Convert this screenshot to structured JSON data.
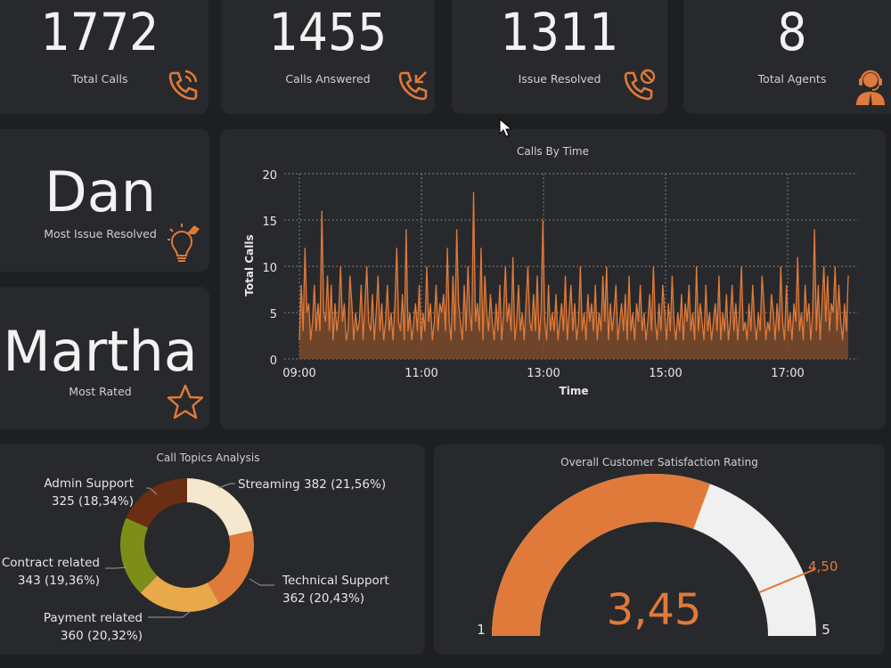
{
  "kpis": [
    {
      "value": "1772",
      "label": "Total Calls",
      "icon": "phone-ringing-icon"
    },
    {
      "value": "1455",
      "label": "Calls Answered",
      "icon": "phone-incoming-icon"
    },
    {
      "value": "1311",
      "label": "Issue Resolved",
      "icon": "phone-blocked-icon"
    },
    {
      "value": "8",
      "label": "Total Agents",
      "icon": "agent-headset-icon"
    }
  ],
  "highlights": [
    {
      "name": "Dan",
      "label": "Most Issue Resolved",
      "icon": "lightbulb-icon"
    },
    {
      "name": "Martha",
      "label": "Most Rated",
      "icon": "star-icon"
    }
  ],
  "colors": {
    "accent": "#e07a3a",
    "background": "#1e1f21",
    "card": "#28292c",
    "gauge_remaining": "#f0f0f0"
  },
  "line_chart": {
    "title": "Calls By Time",
    "xlabel": "Time",
    "ylabel": "Total Calls",
    "y_ticks": [
      "0",
      "5",
      "10",
      "15",
      "20"
    ],
    "x_ticks": [
      "09:00",
      "11:00",
      "13:00",
      "15:00",
      "17:00"
    ]
  },
  "donut_chart": {
    "title": "Call Topics Analysis",
    "labels": [
      {
        "name": "Streaming 382 (21,56%)"
      },
      {
        "name": "Technical Support",
        "value": "362 (20,43%)"
      },
      {
        "name": "Payment related",
        "value": "360 (20,32%)"
      },
      {
        "name": "Contract related",
        "value": "343 (19,36%)"
      },
      {
        "name": "Admin Support",
        "value": "325 (18,34%)"
      }
    ]
  },
  "gauge": {
    "title": "Overall Customer Satisfaction Rating",
    "value_label": "3,45",
    "target_label": "4,50",
    "min_label": "1",
    "max_label": "5"
  },
  "chart_data": [
    {
      "type": "area",
      "title": "Calls By Time",
      "xlabel": "Time",
      "ylabel": "Total Calls",
      "x_range": [
        "09:00",
        "18:00"
      ],
      "ylim": [
        0,
        20
      ],
      "grid": true,
      "series": [
        {
          "values": [
            2,
            8,
            3,
            12,
            5,
            6,
            2,
            4,
            8,
            3,
            6,
            3,
            16,
            5,
            4,
            9,
            3,
            8,
            2,
            6,
            3,
            5,
            10,
            4,
            6,
            2,
            3,
            9,
            6,
            2,
            5,
            3,
            4,
            8,
            2,
            6,
            10,
            4,
            3,
            7,
            2,
            5,
            9,
            3,
            6,
            2,
            4,
            8,
            3,
            5,
            2,
            6,
            12,
            4,
            3,
            7,
            2,
            14,
            3,
            5,
            2,
            4,
            6,
            3,
            8,
            2,
            5,
            3,
            10,
            4,
            6,
            2,
            4,
            8,
            3,
            6,
            5,
            7,
            3,
            12,
            4,
            2,
            9,
            3,
            14,
            6,
            4,
            2,
            8,
            3,
            10,
            5,
            3,
            18,
            4,
            6,
            3,
            12,
            2,
            9,
            5,
            3,
            7,
            4,
            2,
            6,
            3,
            8,
            2,
            5,
            10,
            4,
            6,
            3,
            11,
            2,
            4,
            8,
            3,
            5,
            2,
            6,
            10,
            4,
            3,
            7,
            3,
            9,
            2,
            5,
            15,
            4,
            2,
            8,
            3,
            5,
            3,
            7,
            2,
            4,
            6,
            3,
            9,
            2,
            5,
            8,
            3,
            6,
            2,
            4,
            10,
            3,
            5,
            2,
            7,
            4,
            6,
            3,
            8,
            2,
            5,
            3,
            9,
            4,
            10,
            2,
            6,
            3,
            5,
            8,
            2,
            4,
            6,
            3,
            7,
            2,
            9,
            3,
            5,
            2,
            6,
            4,
            8,
            3,
            5,
            2,
            4,
            7,
            3,
            10,
            4,
            2,
            6,
            3,
            8,
            5,
            2,
            6,
            3,
            9,
            4,
            2,
            5,
            3,
            7,
            2,
            6,
            4,
            8,
            3,
            5,
            2,
            10,
            3,
            6,
            4,
            2,
            8,
            3,
            5,
            2,
            4,
            6,
            3,
            9,
            2,
            5,
            3,
            7,
            2,
            4,
            8,
            3,
            6,
            2,
            5,
            10,
            3,
            4,
            2,
            6,
            3,
            8,
            4,
            2,
            5,
            3,
            9,
            6,
            2,
            4,
            3,
            7,
            5,
            2,
            6,
            3,
            10,
            4,
            2,
            8,
            3,
            5,
            2,
            6,
            4,
            11,
            3,
            5,
            2,
            8,
            4,
            6,
            2,
            5,
            14,
            3,
            8,
            2,
            6,
            10,
            4,
            9,
            3,
            6,
            5,
            10,
            3,
            8,
            4,
            2,
            6,
            3,
            9
          ]
        }
      ]
    },
    {
      "type": "pie",
      "title": "Call Topics Analysis",
      "categories": [
        "Streaming",
        "Technical Support",
        "Payment related",
        "Contract related",
        "Admin Support"
      ],
      "values": [
        382,
        362,
        360,
        343,
        325
      ],
      "percentages": [
        21.56,
        20.43,
        20.32,
        19.36,
        18.34
      ],
      "colors": [
        "#f6e7cf",
        "#e07a3a",
        "#e8a94a",
        "#7d8e18",
        "#6a2e12"
      ]
    },
    {
      "type": "gauge",
      "title": "Overall Customer Satisfaction Rating",
      "min": 1,
      "max": 5,
      "value": 3.45,
      "target": 4.5
    }
  ]
}
